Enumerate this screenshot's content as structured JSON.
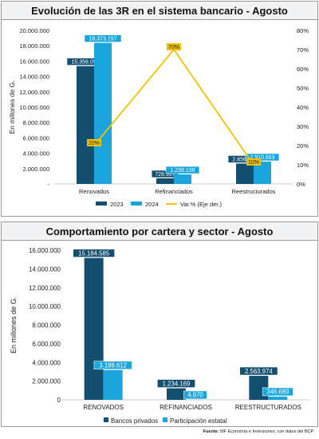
{
  "chart_data": [
    {
      "type": "bar",
      "title": "Evolución de las 3R en el sistema bancario - Agosto",
      "ylabel": "En millones de G.",
      "categories": [
        "Renovados",
        "Refinanciados",
        "Reestructurados"
      ],
      "series": [
        {
          "name": "2023",
          "color": "#144f6f",
          "values": [
            15356092,
            728317,
            2656788
          ],
          "labels": [
            "15.356.092",
            "728.317",
            "2.656.788"
          ]
        },
        {
          "name": "2024",
          "color": "#1aa6dc",
          "values": [
            18373197,
            1239139,
            2910663
          ],
          "labels": [
            "18.373.197",
            "1.239.139",
            "2.910.663"
          ]
        }
      ],
      "line": {
        "name": "Var.% (Eje der.)",
        "color": "#f2c200",
        "values": [
          20,
          70,
          10
        ],
        "labels": [
          "20%",
          "70%",
          "10%"
        ]
      },
      "ylim": [
        0,
        20000000
      ],
      "yticks": [
        "-",
        "2.000.000",
        "4.000.000",
        "6.000.000",
        "8.000.000",
        "10.000.000",
        "12.000.000",
        "14.000.000",
        "16.000.000",
        "18.000.000",
        "20.000.000"
      ],
      "y2lim": [
        0,
        80
      ],
      "y2ticks": [
        "0%",
        "10%",
        "20%",
        "30%",
        "40%",
        "50%",
        "60%",
        "70%",
        "80%"
      ],
      "legend_position": "bottom"
    },
    {
      "type": "bar",
      "title": "Comportamiento por cartera y sector - Agosto",
      "ylabel": "En millones de G.",
      "categories": [
        "RENOVADOS",
        "REFINANCIADOS",
        "REESTRUCTURADOS"
      ],
      "series": [
        {
          "name": "Bancos privados",
          "color": "#144f6f",
          "values": [
            15184585,
            1234169,
            2563974
          ],
          "labels": [
            "15.184.585",
            "1.234.169",
            "2.563.974"
          ]
        },
        {
          "name": "Participación estatal",
          "color": "#1aa6dc",
          "values": [
            3188612,
            4970,
            346689
          ],
          "labels": [
            "3.188.612",
            "4.970",
            "346.689"
          ]
        }
      ],
      "ylim": [
        0,
        16000000
      ],
      "yticks": [
        "0",
        "2.000.000",
        "4.000.000",
        "6.000.000",
        "8.000.000",
        "10.000.000",
        "12.000.000",
        "14.000.000",
        "16.000.000"
      ],
      "legend_position": "bottom"
    }
  ],
  "footer": {
    "label": "Fuente:",
    "text": "MF Economía e Inversiones, con datos del BCP."
  }
}
